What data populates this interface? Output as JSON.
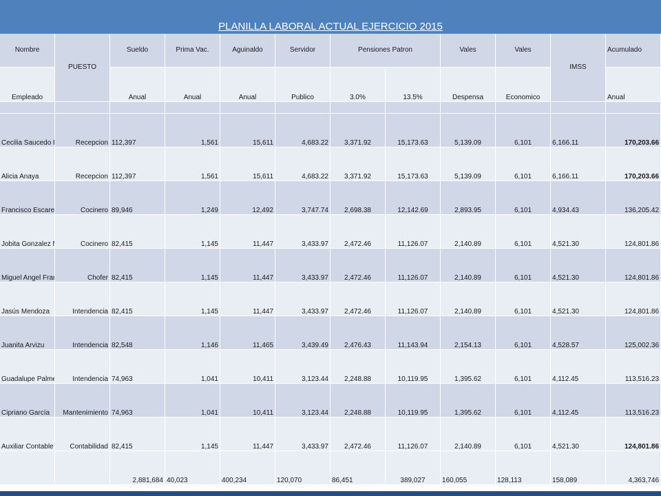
{
  "title": "PLANILLA LABORAL ACTUAL EJERCICIO 2015",
  "header_row1": {
    "nombre": "Nombre",
    "puesto": "PUESTO",
    "sueldo": "Sueldo",
    "prima": "Prima Vac.",
    "aguinaldo": "Aguinaldo",
    "servidor": "Servidor",
    "pensiones": "Pensiones Patron",
    "vales1": "Vales",
    "vales2": "Vales",
    "imss": "IMSS",
    "acumulado": "Acumulado"
  },
  "header_row2": {
    "empleado": "Empleado",
    "sueldo": "Anual",
    "prima": "Anual",
    "aguinaldo": "Anual",
    "servidor": "Publico",
    "pct1": "3.0%",
    "pct2": "13.5%",
    "vales1": "Despensa",
    "vales2": "Economico",
    "acumulado": "Anual"
  },
  "rows": [
    {
      "nombre": "Cecilia Saucedo Perez",
      "puesto": "Recepcion",
      "sueldo": "112,397",
      "prima": "1,561",
      "aguinaldo": "15,611",
      "servidor": "4,683.22",
      "pens3": "3,371.92",
      "pens135": "15,173.63",
      "despensa": "5,139.09",
      "economico": "6,101",
      "imss": "6,166.11",
      "acumulado": "170,203.66"
    },
    {
      "nombre": "Alicia Anaya",
      "puesto": "Recepcion",
      "sueldo": "112,397",
      "prima": "1,561",
      "aguinaldo": "15,611",
      "servidor": "4,683.22",
      "pens3": "3,371.92",
      "pens135": "15,173.63",
      "despensa": "5,139.09",
      "economico": "6,101",
      "imss": "6,166.11",
      "acumulado": "170,203.66"
    },
    {
      "nombre": "Francisco Escareño",
      "puesto": "Cocinero",
      "sueldo": "89,946",
      "prima": "1,249",
      "aguinaldo": "12,492",
      "servidor": "3,747.74",
      "pens3": "2,698.38",
      "pens135": "12,142.69",
      "despensa": "2,893.95",
      "economico": "6,101",
      "imss": "4,934.43",
      "acumulado": "136,205.42"
    },
    {
      "nombre": "Jobita Gonzalez Murillo",
      "puesto": "Cocinero",
      "sueldo": "82,415",
      "prima": "1,145",
      "aguinaldo": "11,447",
      "servidor": "3,433.97",
      "pens3": "2,472.46",
      "pens135": "11,126.07",
      "despensa": "2,140.89",
      "economico": "6,101",
      "imss": "4,521.30",
      "acumulado": "124,801.86"
    },
    {
      "nombre": "Miguel Angel Franco",
      "puesto": "Chofer",
      "sueldo": "82,415",
      "prima": "1,145",
      "aguinaldo": "11,447",
      "servidor": "3,433.97",
      "pens3": "2,472.46",
      "pens135": "11,126.07",
      "despensa": "2,140.89",
      "economico": "6,101",
      "imss": "4,521.30",
      "acumulado": "124,801.86"
    },
    {
      "nombre": "Jasús Mendoza",
      "puesto": "Intendencia",
      "sueldo": "82,415",
      "prima": "1,145",
      "aguinaldo": "11,447",
      "servidor": "3,433.97",
      "pens3": "2,472.46",
      "pens135": "11,126.07",
      "despensa": "2,140.89",
      "economico": "6,101",
      "imss": "4,521.30",
      "acumulado": "124,801.86"
    },
    {
      "nombre": "Juanita Arvizu",
      "puesto": "Intendencia",
      "sueldo": "82,548",
      "prima": "1,146",
      "aguinaldo": "11,465",
      "servidor": "3,439.49",
      "pens3": "2,476.43",
      "pens135": "11,143.94",
      "despensa": "2,154.13",
      "economico": "6,101",
      "imss": "4,528.57",
      "acumulado": "125,002.36"
    },
    {
      "nombre": "Guadalupe Palmerín",
      "puesto": "Intendencia",
      "sueldo": "74,963",
      "prima": "1,041",
      "aguinaldo": "10,411",
      "servidor": "3,123.44",
      "pens3": "2,248.88",
      "pens135": "10,119.95",
      "despensa": "1,395.62",
      "economico": "6,101",
      "imss": "4,112.45",
      "acumulado": "113,516.23"
    },
    {
      "nombre": "Cipriano García",
      "puesto": "Mantenimiento",
      "sueldo": "74,963",
      "prima": "1,041",
      "aguinaldo": "10,411",
      "servidor": "3,123.44",
      "pens3": "2,248.88",
      "pens135": "10,119.95",
      "despensa": "1,395.62",
      "economico": "6,101",
      "imss": "4,112.45",
      "acumulado": "113,516.23"
    },
    {
      "nombre": "Auxiliar Contable",
      "puesto": "Contabilidad",
      "sueldo": "82,415",
      "prima": "1,145",
      "aguinaldo": "11,447",
      "servidor": "3,433.97",
      "pens3": "2,472.46",
      "pens135": "11,126.07",
      "despensa": "2,140.89",
      "economico": "6,101",
      "imss": "4,521.30",
      "acumulado": "124,801.86"
    }
  ],
  "totals": {
    "sueldo": "2,881,684",
    "prima": "40,023",
    "aguinaldo": "400,234",
    "servidor": "120,070",
    "pens3": "86,451",
    "pens135": "389,027",
    "despensa": "160,055",
    "economico": "128,113",
    "imss": "158,089",
    "acumulado": "4,363,746"
  }
}
